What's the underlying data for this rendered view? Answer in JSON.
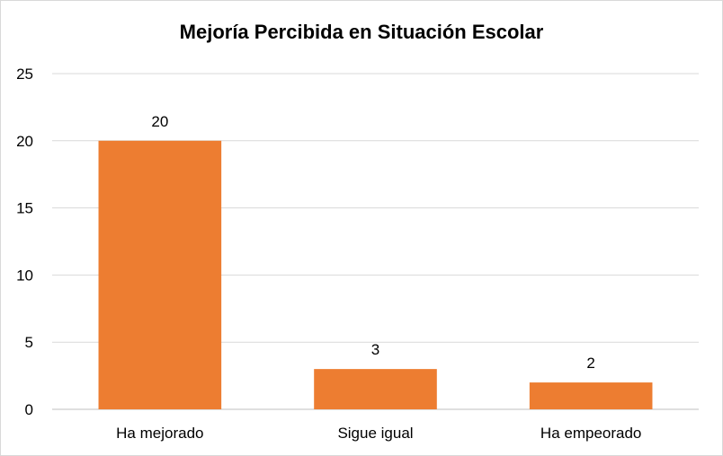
{
  "chart_data": {
    "type": "bar",
    "title": "Mejoría Percibida en Situación Escolar",
    "categories": [
      "Ha mejorado",
      "Sigue igual",
      "Ha empeorado"
    ],
    "values": [
      20,
      3,
      2
    ],
    "data_labels": [
      "20",
      "3",
      "2"
    ],
    "y_ticks": [
      "0",
      "5",
      "10",
      "15",
      "20",
      "25"
    ],
    "ylim": [
      0,
      25
    ],
    "xlabel": "",
    "ylabel": "",
    "grid": true,
    "legend": "none",
    "bar_color": "#ED7D31",
    "grid_color": "#d9d9d9"
  }
}
